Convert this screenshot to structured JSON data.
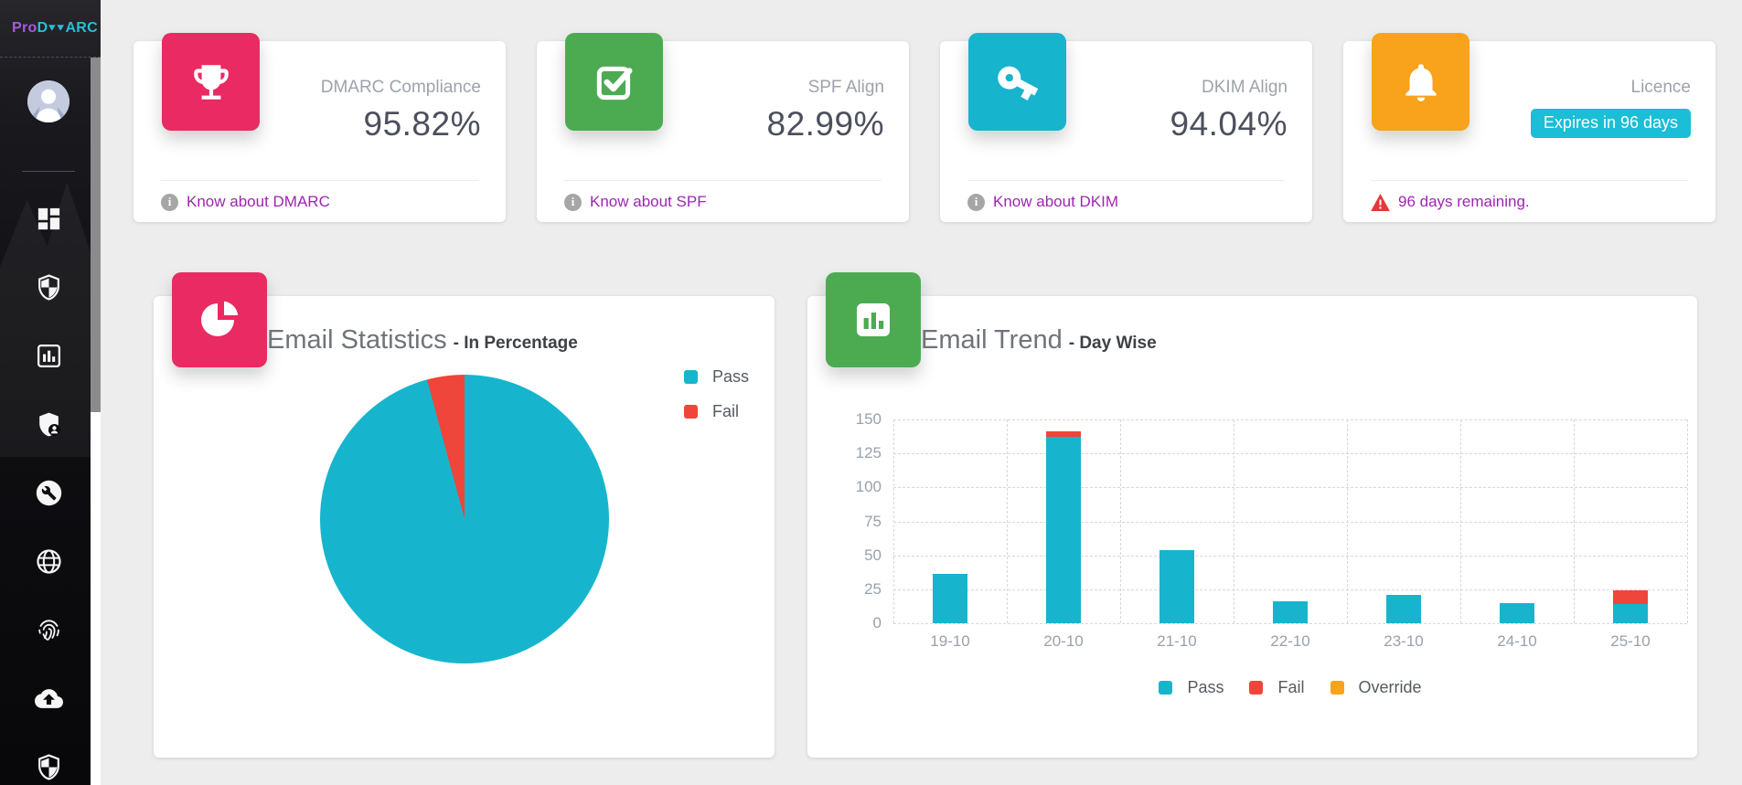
{
  "app": {
    "logo": {
      "pro": "Pro",
      "d": "D",
      "arc": "ARC"
    }
  },
  "sidebar": {
    "icons": [
      "dashboard-grid-icon",
      "shield-icon",
      "bar-chart-icon",
      "shield-user-icon",
      "wrench-icon",
      "globe-icon",
      "fingerprint-icon",
      "cloud-upload-icon",
      "shield-check-icon"
    ],
    "avatar": "user-avatar"
  },
  "stat_cards": [
    {
      "label": "DMARC Compliance",
      "value": "95.82%",
      "footer": "Know about DMARC",
      "icon": "trophy-icon",
      "accent": "#ea2a63"
    },
    {
      "label": "SPF Align",
      "value": "82.99%",
      "footer": "Know about SPF",
      "icon": "checkbox-icon",
      "accent": "#4cab51"
    },
    {
      "label": "DKIM Align",
      "value": "94.04%",
      "footer": "Know about DKIM",
      "icon": "key-icon",
      "accent": "#17b4ce"
    },
    {
      "label": "Licence",
      "badge": "Expires in 96 days",
      "footer": "96 days remaining.",
      "icon": "bell-icon",
      "accent": "#f9a21b"
    }
  ],
  "colors": {
    "badge_bg": "#1cbdd6",
    "link_purple": "#9c27b0",
    "warning_red": "#e53935",
    "page_bg": "#ededed"
  },
  "charts": {
    "pie_title": "Email Statistics",
    "pie_subtitle": "- In Percentage",
    "trend_title": "Email Trend",
    "trend_subtitle": "- Day Wise"
  },
  "chart_data": [
    {
      "type": "pie",
      "title": "Email Statistics - In Percentage",
      "labels": [
        "Pass",
        "Fail"
      ],
      "values": [
        95.82,
        4.18
      ],
      "colors": [
        "#16b5cd",
        "#f0453a"
      ],
      "legend_position": "right",
      "start_angle": "top-clockwise"
    },
    {
      "type": "bar",
      "stacked": true,
      "title": "Email Trend - Day Wise",
      "categories": [
        "19-10",
        "20-10",
        "21-10",
        "22-10",
        "23-10",
        "24-10",
        "25-10"
      ],
      "series": [
        {
          "name": "Pass",
          "color": "#16b5cd",
          "values": [
            36,
            137,
            54,
            16,
            21,
            15,
            14
          ]
        },
        {
          "name": "Fail",
          "color": "#f0453a",
          "values": [
            0,
            4,
            0,
            0,
            0,
            0,
            10
          ]
        },
        {
          "name": "Override",
          "color": "#f9a21c",
          "values": [
            0,
            0,
            0,
            0,
            0,
            0,
            0
          ]
        }
      ],
      "ylim": [
        0,
        150
      ],
      "yticks": [
        0,
        25,
        50,
        75,
        100,
        125,
        150
      ],
      "grid": true,
      "legend_position": "bottom"
    }
  ]
}
